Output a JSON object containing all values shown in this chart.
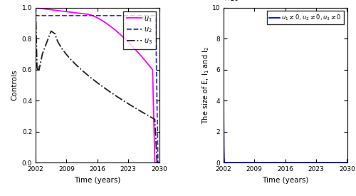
{
  "xlim": [
    2002,
    2030
  ],
  "left_ylim": [
    0,
    1
  ],
  "right_ylim": [
    0,
    1000000
  ],
  "xticks": [
    2002,
    2009,
    2016,
    2023,
    2030
  ],
  "left_yticks": [
    0,
    0.2,
    0.4,
    0.6,
    0.8,
    1.0
  ],
  "right_yticks": [
    0,
    200000,
    400000,
    600000,
    800000,
    1000000
  ],
  "xlabel": "Time (years)",
  "left_ylabel": "Controls",
  "right_ylabel": "The size of E, I$_1$ and I$_2$",
  "u1_color": "#ff00ff",
  "u2_color": "#3333cc",
  "u3_color": "#222222",
  "right_color": "#0000cc"
}
